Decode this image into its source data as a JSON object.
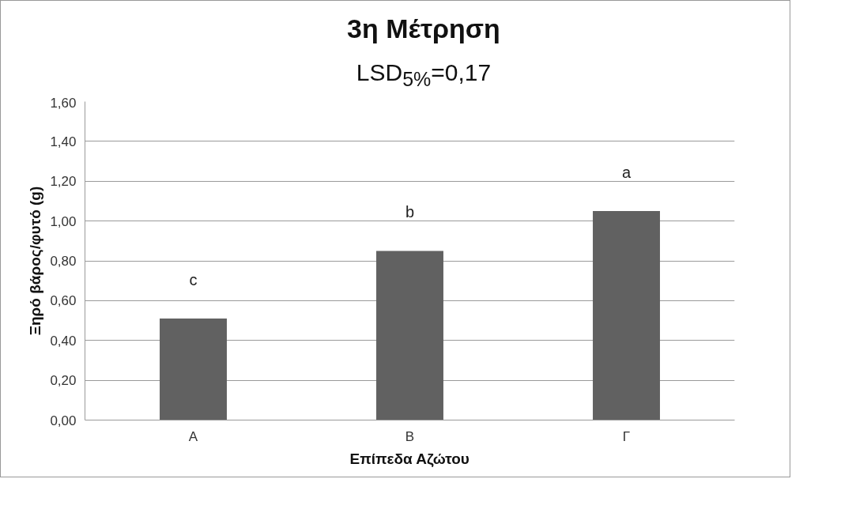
{
  "chart_data": {
    "type": "bar",
    "title": "3η Μέτρηση",
    "subtitle": "LSD$_{5%}$=0,17",
    "xlabel": "Επίπεδα Αζώτου",
    "ylabel": "Ξηρό βάρος/φυτό (g)",
    "categories": [
      "Α",
      "Β",
      "Γ"
    ],
    "values": [
      0.51,
      0.85,
      1.05
    ],
    "color": "#616161",
    "ylim": [
      0,
      1.6
    ],
    "yticks": [
      {
        "value": 0,
        "label": "0,00"
      },
      {
        "value": 0.2,
        "label": "0,20"
      },
      {
        "value": 0.4,
        "label": "0,40"
      },
      {
        "value": 0.6,
        "label": "0,60"
      },
      {
        "value": 0.8,
        "label": "0,80"
      },
      {
        "value": 1.0,
        "label": "1,00"
      },
      {
        "value": 1.2,
        "label": "1,20"
      },
      {
        "value": 1.4,
        "label": "1,40"
      },
      {
        "value": 1.6,
        "label": "1,60"
      }
    ],
    "grid": "y",
    "annotations": [
      "c",
      "b",
      "a"
    ]
  }
}
